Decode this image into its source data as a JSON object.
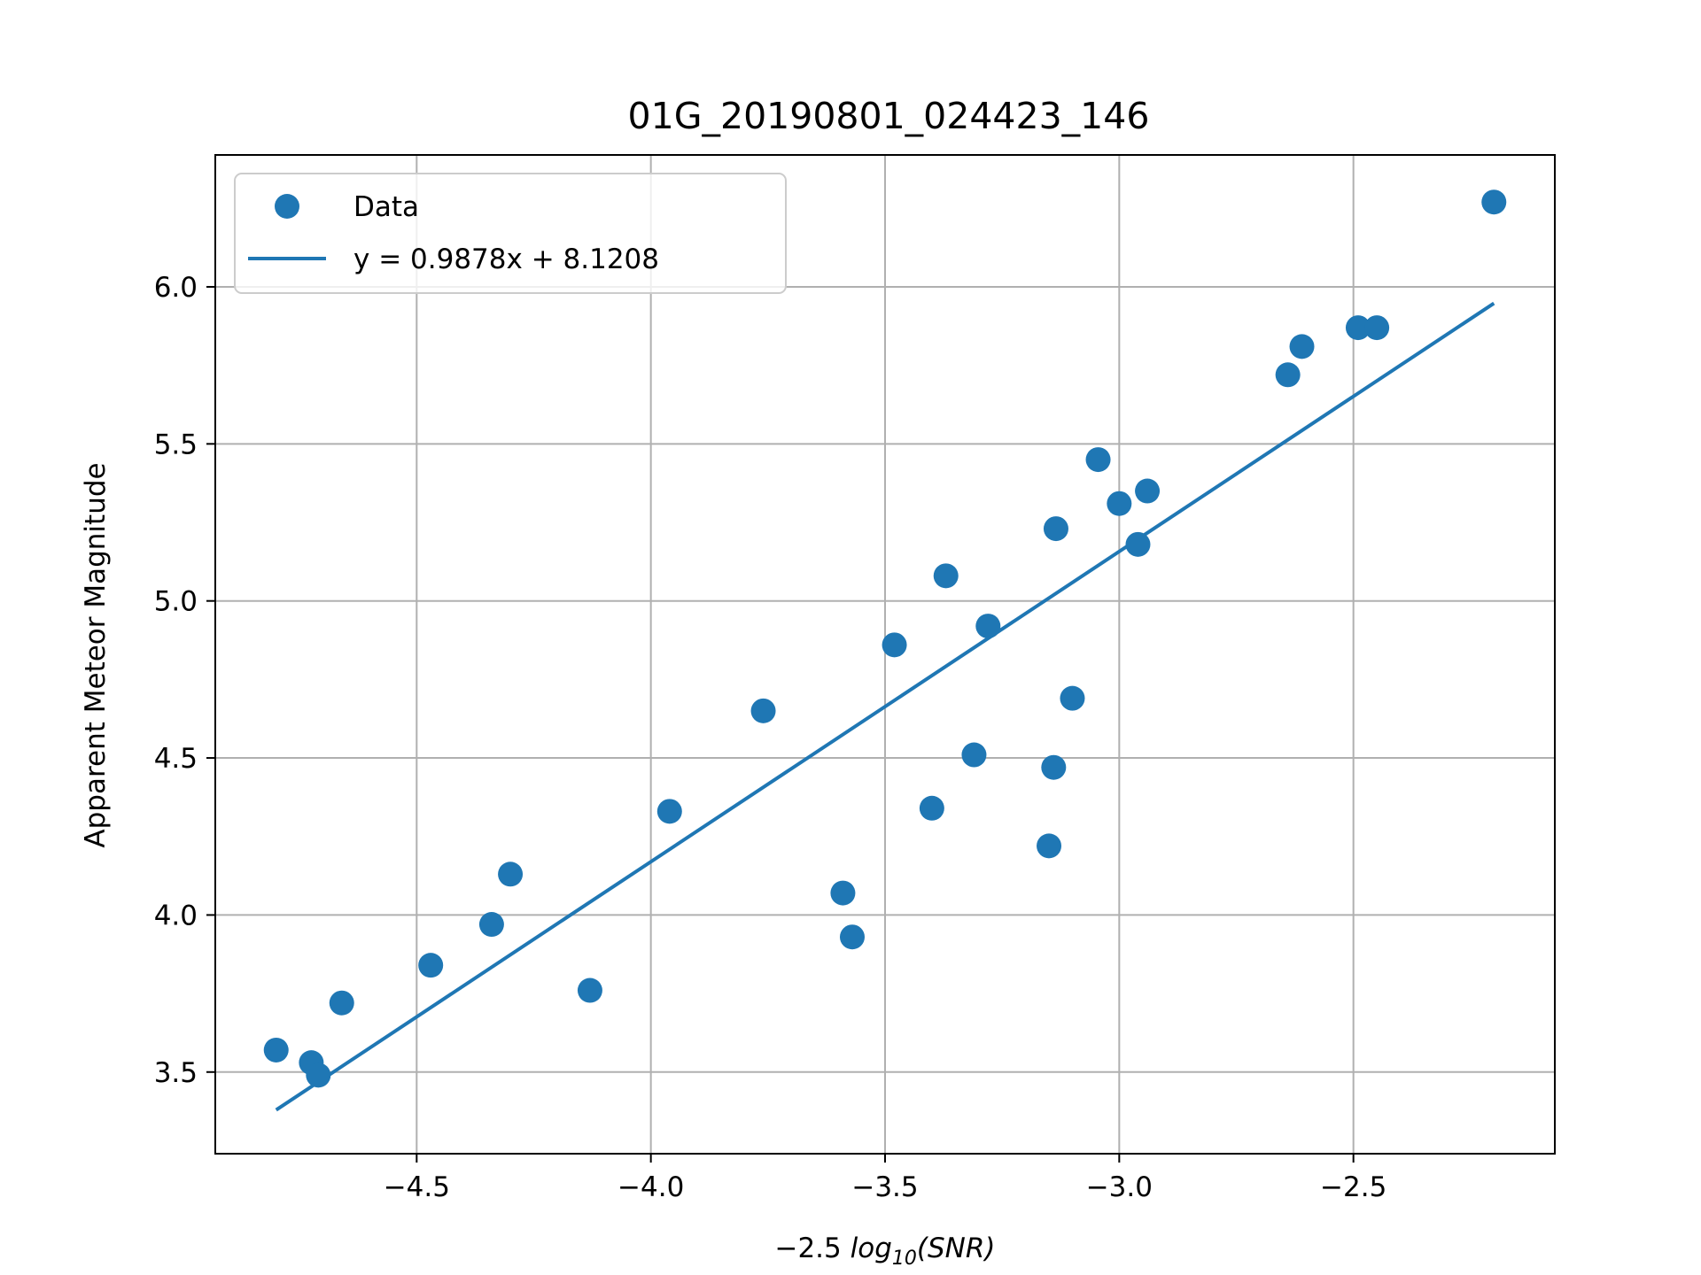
{
  "chart_data": {
    "type": "scatter",
    "title": "01G_20190801_024423_146",
    "xlabel": {
      "prefix": "−2.5 ",
      "func": "log",
      "sub": "10",
      "arg": "(SNR)"
    },
    "ylabel": "Apparent Meteor Magnitude",
    "xlim": [
      -4.93,
      -2.07
    ],
    "ylim": [
      3.24,
      6.42
    ],
    "xticks": [
      -4.5,
      -4.0,
      -3.5,
      -3.0,
      -2.5
    ],
    "xtick_labels": [
      "−4.5",
      "−4.0",
      "−3.5",
      "−3.0",
      "−2.5"
    ],
    "yticks": [
      3.5,
      4.0,
      4.5,
      5.0,
      5.5,
      6.0
    ],
    "ytick_labels": [
      "3.5",
      "4.0",
      "4.5",
      "5.0",
      "5.5",
      "6.0"
    ],
    "grid": true,
    "legend_position": "upper-left",
    "series": [
      {
        "name": "Data",
        "kind": "scatter",
        "color": "#1f77b4",
        "points": [
          [
            -4.8,
            3.57
          ],
          [
            -4.725,
            3.53
          ],
          [
            -4.71,
            3.49
          ],
          [
            -4.66,
            3.72
          ],
          [
            -4.47,
            3.84
          ],
          [
            -4.34,
            3.97
          ],
          [
            -4.3,
            4.13
          ],
          [
            -4.13,
            3.76
          ],
          [
            -3.96,
            4.33
          ],
          [
            -3.76,
            4.65
          ],
          [
            -3.59,
            4.07
          ],
          [
            -3.57,
            3.93
          ],
          [
            -3.48,
            4.86
          ],
          [
            -3.4,
            4.34
          ],
          [
            -3.37,
            5.08
          ],
          [
            -3.31,
            4.51
          ],
          [
            -3.28,
            4.92
          ],
          [
            -3.15,
            4.22
          ],
          [
            -3.14,
            4.47
          ],
          [
            -3.135,
            5.23
          ],
          [
            -3.1,
            4.69
          ],
          [
            -3.045,
            5.45
          ],
          [
            -3.0,
            5.31
          ],
          [
            -2.96,
            5.18
          ],
          [
            -2.94,
            5.35
          ],
          [
            -2.64,
            5.72
          ],
          [
            -2.61,
            5.81
          ],
          [
            -2.49,
            5.87
          ],
          [
            -2.45,
            5.87
          ],
          [
            -2.2,
            6.27
          ]
        ]
      },
      {
        "name": "y = 0.9878x + 8.1208",
        "kind": "line",
        "color": "#1f77b4",
        "slope": 0.9878,
        "intercept": 8.1208,
        "x_range": [
          -4.8,
          -2.2
        ]
      }
    ]
  }
}
